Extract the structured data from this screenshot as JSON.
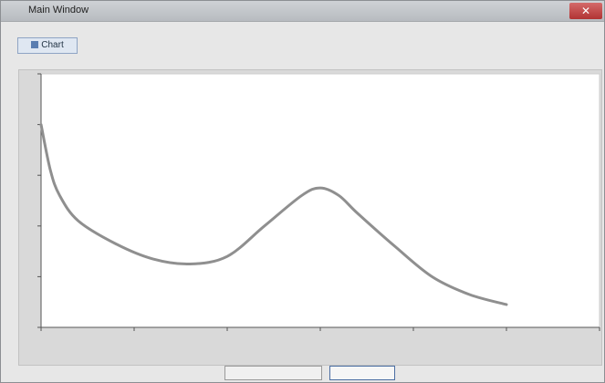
{
  "window": {
    "title": "Main Window",
    "close_label": "✕"
  },
  "toolbar": {
    "button_label": "Chart",
    "button_icon": "chart-icon"
  },
  "center_mark": "",
  "side_label": "",
  "chart_data": {
    "type": "line",
    "title": "",
    "xlabel": "",
    "ylabel": "",
    "xlim": [
      0,
      300
    ],
    "ylim": [
      0,
      100
    ],
    "grid": false,
    "x": [
      0,
      5,
      10,
      20,
      40,
      60,
      80,
      100,
      120,
      140,
      150,
      160,
      170,
      190,
      210,
      230,
      250
    ],
    "series": [
      {
        "values": [
          80,
          62,
          52,
          42,
          33,
          27,
          25,
          28,
          40,
          52,
          55,
          52,
          45,
          32,
          20,
          13,
          9
        ]
      }
    ],
    "line_color": "#8f8f8f"
  },
  "buttons": {
    "left": "",
    "right": ""
  }
}
